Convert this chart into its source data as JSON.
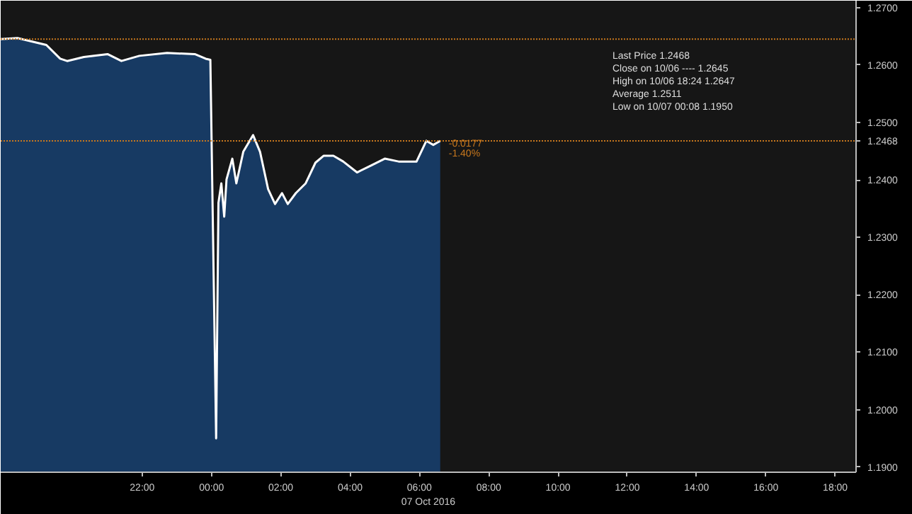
{
  "chart_data": {
    "type": "area",
    "x": [
      "2016-10-06T17:55",
      "2016-10-06T18:24",
      "2016-10-06T19:14",
      "2016-10-06T19:38",
      "2016-10-06T19:50",
      "2016-10-06T20:19",
      "2016-10-06T21:00",
      "2016-10-06T21:24",
      "2016-10-06T21:55",
      "2016-10-06T22:43",
      "2016-10-06T23:31",
      "2016-10-06T23:50",
      "2016-10-06T23:58",
      "2016-10-07T00:08",
      "2016-10-07T00:12",
      "2016-10-07T00:17",
      "2016-10-07T00:22",
      "2016-10-07T00:26",
      "2016-10-07T00:36",
      "2016-10-07T00:43",
      "2016-10-07T00:55",
      "2016-10-07T01:12",
      "2016-10-07T01:24",
      "2016-10-07T01:38",
      "2016-10-07T01:50",
      "2016-10-07T02:02",
      "2016-10-07T02:12",
      "2016-10-07T02:26",
      "2016-10-07T02:43",
      "2016-10-07T03:00",
      "2016-10-07T03:14",
      "2016-10-07T03:31",
      "2016-10-07T03:48",
      "2016-10-07T04:12",
      "2016-10-07T04:36",
      "2016-10-07T05:00",
      "2016-10-07T05:24",
      "2016-10-07T05:55",
      "2016-10-07T06:12",
      "2016-10-07T06:24",
      "2016-10-07T06:36"
    ],
    "series": [
      {
        "color": "#173a63",
        "values": [
          1.2645,
          1.2647,
          1.2635,
          1.2611,
          1.2607,
          1.2614,
          1.2619,
          1.2607,
          1.2616,
          1.2621,
          1.2619,
          1.2611,
          1.2609,
          1.195,
          1.236,
          1.2394,
          1.2336,
          1.2401,
          1.2437,
          1.2394,
          1.2449,
          1.2478,
          1.2449,
          1.2384,
          1.2358,
          1.2377,
          1.2358,
          1.2377,
          1.2394,
          1.243,
          1.2442,
          1.2442,
          1.2432,
          1.2413,
          1.2425,
          1.2437,
          1.2432,
          1.2432,
          1.2468,
          1.2461,
          1.2468
        ]
      }
    ],
    "xlabel": "07 Oct 2016",
    "xlim": [
      "2016-10-06T17:55",
      "2016-10-07T18:36"
    ],
    "xticks": [
      {
        "value": "2016-10-06T22:00",
        "label": "22:00"
      },
      {
        "value": "2016-10-07T00:00",
        "label": "00:00"
      },
      {
        "value": "2016-10-07T02:00",
        "label": "02:00"
      },
      {
        "value": "2016-10-07T04:00",
        "label": "04:00"
      },
      {
        "value": "2016-10-07T06:00",
        "label": "06:00"
      },
      {
        "value": "2016-10-07T08:00",
        "label": "08:00"
      },
      {
        "value": "2016-10-07T10:00",
        "label": "10:00"
      },
      {
        "value": "2016-10-07T12:00",
        "label": "12:00"
      },
      {
        "value": "2016-10-07T14:00",
        "label": "14:00"
      },
      {
        "value": "2016-10-07T16:00",
        "label": "16:00"
      },
      {
        "value": "2016-10-07T18:00",
        "label": "18:00"
      }
    ],
    "ylim": [
      1.1891,
      1.2712
    ],
    "yticks": [
      {
        "value": 1.19,
        "label": "1.1900"
      },
      {
        "value": 1.2,
        "label": "1.2000"
      },
      {
        "value": 1.21,
        "label": "1.2100"
      },
      {
        "value": 1.22,
        "label": "1.2200"
      },
      {
        "value": 1.23,
        "label": "1.2300"
      },
      {
        "value": 1.24,
        "label": "1.2400"
      },
      {
        "value": 1.25,
        "label": "1.2500"
      },
      {
        "value": 1.26,
        "label": "1.2600"
      },
      {
        "value": 1.27,
        "label": "1.2700"
      }
    ],
    "ref_lines": [
      {
        "axis": "y",
        "value": 1.2645,
        "color": "#c8781e",
        "line_style": "dotted"
      },
      {
        "axis": "y",
        "value": 1.2468,
        "label": "1.2468",
        "color": "#c8781e",
        "line_style": "dotted"
      }
    ],
    "annotations": [
      "Last Price 1.2468",
      "Close on 10/06 ---- 1.2645",
      "High on 10/06 18:24 1.2647",
      "Average 1.2511",
      "Low on 10/07 00:08 1.1950",
      {
        "text": "-0.0177",
        "x": "2016-10-07T06:36",
        "y": 1.2468
      },
      {
        "text": "-1.40%",
        "x": "2016-10-07T06:36",
        "y": 1.2468
      }
    ],
    "grid": false
  }
}
